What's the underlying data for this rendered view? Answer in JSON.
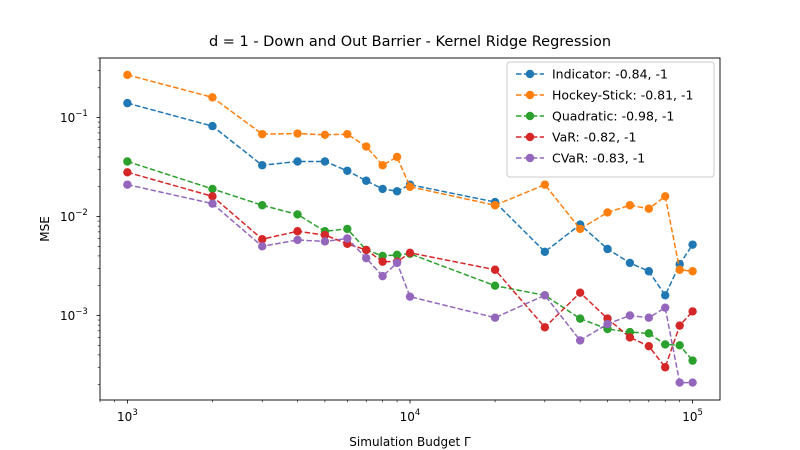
{
  "chart_data": {
    "type": "line",
    "title": "d = 1 - Down and Out Barrier - Kernel Ridge Regression",
    "xlabel": "Simulation Budget Γ",
    "ylabel": "MSE",
    "xscale": "log",
    "yscale": "log",
    "xlim": [
      800,
      125000
    ],
    "ylim": [
      0.00014,
      0.4
    ],
    "x_ticks": [
      {
        "value": 1000,
        "base": "10",
        "exp": "3"
      },
      {
        "value": 10000,
        "base": "10",
        "exp": "4"
      },
      {
        "value": 100000,
        "base": "10",
        "exp": "5"
      }
    ],
    "y_ticks": [
      {
        "value": 0.001,
        "base": "10",
        "exp": "−3"
      },
      {
        "value": 0.01,
        "base": "10",
        "exp": "−2"
      },
      {
        "value": 0.1,
        "base": "10",
        "exp": "−1"
      }
    ],
    "grid": false,
    "legend_position": "top-right",
    "x": [
      1000,
      2000,
      3000,
      4000,
      5000,
      6000,
      7000,
      8000,
      9000,
      10000,
      20000,
      30000,
      40000,
      50000,
      60000,
      70000,
      80000,
      90000,
      100000
    ],
    "series": [
      {
        "name": "Indicator: -0.84, -1",
        "color": "#1f77b4",
        "values": [
          0.14,
          0.082,
          0.033,
          0.036,
          0.036,
          0.029,
          0.023,
          0.019,
          0.018,
          0.021,
          0.014,
          0.0044,
          0.0083,
          0.0047,
          0.0034,
          0.0028,
          0.0016,
          0.0033,
          0.0052
        ]
      },
      {
        "name": "Hockey-Stick: -0.81, -1",
        "color": "#ff7f0e",
        "values": [
          0.27,
          0.16,
          0.068,
          0.069,
          0.067,
          0.068,
          0.051,
          0.033,
          0.04,
          0.02,
          0.013,
          0.021,
          0.0075,
          0.011,
          0.013,
          0.012,
          0.016,
          0.0029,
          0.0028
        ]
      },
      {
        "name": "Quadratic: -0.98, -1",
        "color": "#2ca02c",
        "values": [
          0.036,
          0.019,
          0.013,
          0.0105,
          0.0071,
          0.0075,
          0.0046,
          0.004,
          0.0041,
          0.0042,
          0.002,
          0.0016,
          0.00093,
          0.00073,
          0.00068,
          0.00066,
          0.00051,
          0.0005,
          0.00035
        ]
      },
      {
        "name": "VaR: -0.82, -1",
        "color": "#d62728",
        "values": [
          0.028,
          0.016,
          0.0059,
          0.0071,
          0.0065,
          0.0053,
          0.0046,
          0.0035,
          0.0035,
          0.0043,
          0.0029,
          0.00076,
          0.0017,
          0.00093,
          0.0006,
          0.00049,
          0.0003,
          0.00079,
          0.0011
        ]
      },
      {
        "name": "CVaR: -0.83, -1",
        "color": "#9467bd",
        "values": [
          0.021,
          0.0135,
          0.005,
          0.0058,
          0.0056,
          0.006,
          0.0038,
          0.0025,
          0.0034,
          0.00155,
          0.00095,
          0.0016,
          0.00056,
          0.00082,
          0.001,
          0.00095,
          0.0012,
          0.00021,
          0.00021
        ]
      }
    ]
  }
}
